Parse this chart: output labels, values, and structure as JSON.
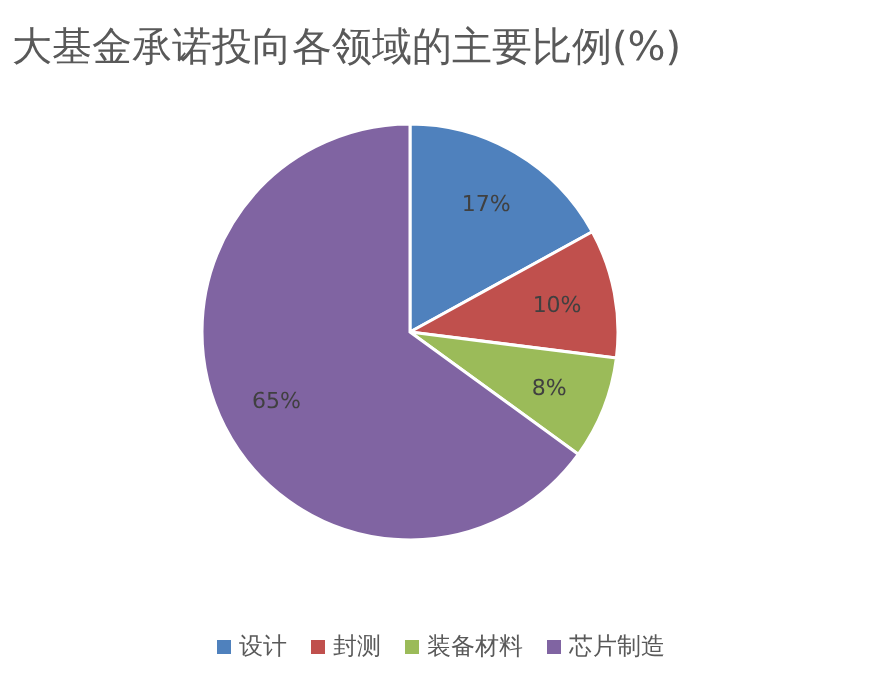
{
  "chart_data": {
    "type": "pie",
    "title": "大基金承诺投向各领域的主要比例(%)",
    "categories": [
      "设计",
      "封测",
      "装备材料",
      "芯片制造"
    ],
    "values": [
      17,
      10,
      8,
      65
    ],
    "colors": [
      "#4f81bd",
      "#c0504d",
      "#9bbb59",
      "#8064a2"
    ],
    "value_labels": [
      "17%",
      "10%",
      "8%",
      "65%"
    ],
    "legend": "bottom"
  }
}
